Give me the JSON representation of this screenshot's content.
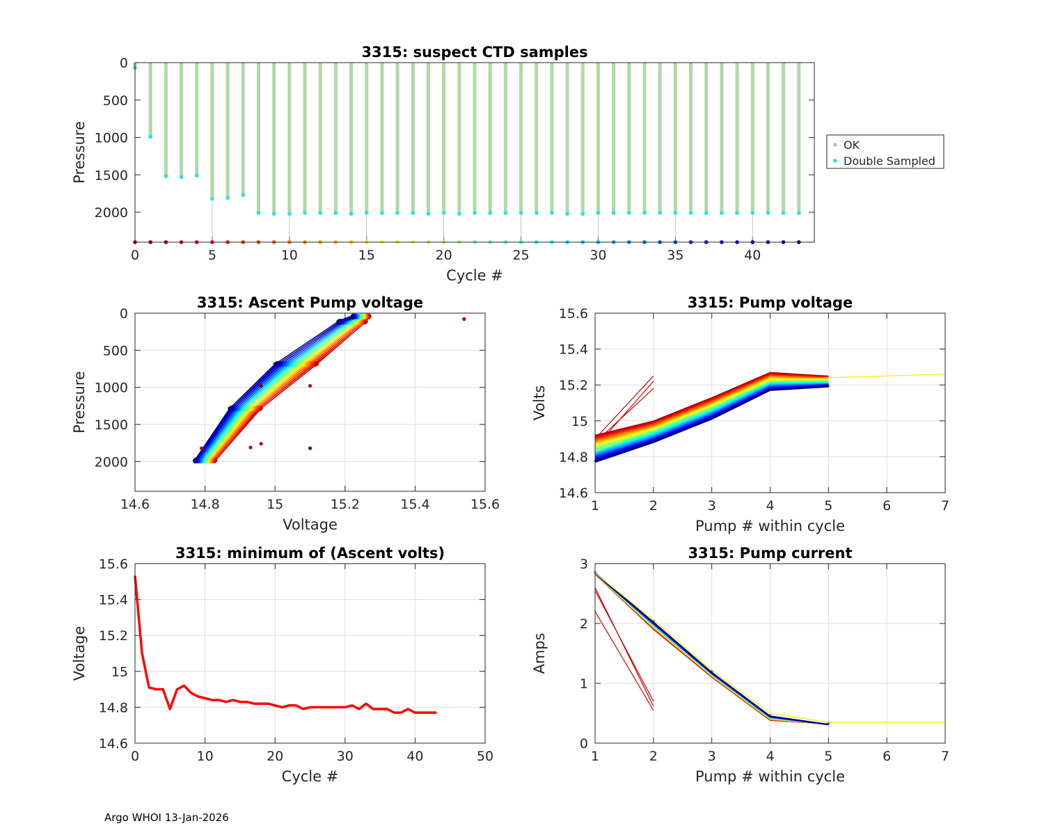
{
  "footer": "Argo WHOI 13-Jan-2026",
  "chart_data": [
    {
      "id": "ctd",
      "type": "scatter",
      "title": "3315: suspect CTD samples",
      "xlabel": "Cycle #",
      "ylabel": "Pressure",
      "xlim": [
        0,
        44
      ],
      "ylim": [
        0,
        2400
      ],
      "y_reversed": true,
      "xticks": [
        0,
        5,
        10,
        15,
        20,
        25,
        30,
        35,
        40
      ],
      "yticks": [
        0,
        500,
        1000,
        1500,
        2000
      ],
      "legend": [
        "OK",
        "Double Sampled"
      ],
      "colors": {
        "ok": "#b2d8a8",
        "double": "#22e4ec",
        "legend_ok": "#bdbdbd"
      },
      "cycles": [
        0,
        1,
        2,
        3,
        4,
        5,
        6,
        7,
        8,
        9,
        10,
        11,
        12,
        13,
        14,
        15,
        16,
        17,
        18,
        19,
        20,
        21,
        22,
        23,
        24,
        25,
        26,
        27,
        28,
        29,
        30,
        31,
        32,
        33,
        34,
        35,
        36,
        37,
        38,
        39,
        40,
        41,
        42,
        43
      ],
      "max_pressure": [
        70,
        990,
        1520,
        1530,
        1510,
        1820,
        1810,
        1770,
        2010,
        2020,
        2020,
        2010,
        2010,
        2010,
        2020,
        2010,
        2010,
        2010,
        2010,
        2020,
        2010,
        2020,
        2010,
        2010,
        2010,
        2010,
        2010,
        2010,
        2020,
        2020,
        2010,
        2010,
        2010,
        2010,
        2010,
        2010,
        2010,
        2010,
        2010,
        2010,
        2010,
        2010,
        2010,
        2010
      ]
    },
    {
      "id": "ascent",
      "type": "line",
      "title": "3315: Ascent Pump voltage",
      "xlabel": "Voltage",
      "ylabel": "Pressure",
      "xlim": [
        14.6,
        15.6
      ],
      "ylim": [
        0,
        2400
      ],
      "y_reversed": true,
      "xticks": [
        "14.6",
        "14.8",
        "15",
        "15.2",
        "15.4",
        "15.6"
      ],
      "yticks": [
        0,
        500,
        1000,
        1500,
        2000
      ],
      "pressures": [
        2000,
        1300,
        700,
        130,
        60
      ],
      "series_first": [
        14.96,
        15.1,
        15.54
      ],
      "series_early": [
        14.83,
        14.96,
        15.12,
        15.26,
        15.27
      ],
      "series_late": [
        14.77,
        14.87,
        15.0,
        15.18,
        15.22
      ],
      "outliers": [
        [
          14.79,
          1820
        ],
        [
          15.1,
          980
        ],
        [
          15.54,
          80
        ],
        [
          14.93,
          1810
        ],
        [
          14.96,
          1760
        ]
      ]
    },
    {
      "id": "pumpv",
      "type": "line",
      "title": "3315: Pump voltage",
      "xlabel": "Pump # within cycle",
      "ylabel": "Volts",
      "xlim": [
        1,
        7
      ],
      "ylim": [
        14.6,
        15.6
      ],
      "xticks": [
        1,
        2,
        3,
        4,
        5,
        6,
        7
      ],
      "yticks": [
        "14.6",
        "14.8",
        "15",
        "15.2",
        "15.4",
        "15.6"
      ],
      "series_early": [
        14.92,
        15.0,
        15.13,
        15.27,
        15.25
      ],
      "series_late": [
        14.77,
        14.88,
        15.01,
        15.17,
        15.19
      ],
      "short_series": [
        [
          14.9,
          15.25
        ],
        [
          14.88,
          15.18
        ],
        [
          14.85,
          15.22
        ]
      ],
      "long_series": [
        14.83,
        14.96,
        15.09,
        15.22,
        15.24,
        15.25,
        15.26
      ]
    },
    {
      "id": "minv",
      "type": "line",
      "title": "3315: minimum of (Ascent volts)",
      "xlabel": "Cycle #",
      "ylabel": "Voltage",
      "xlim": [
        0,
        50
      ],
      "ylim": [
        14.6,
        15.6
      ],
      "xticks": [
        0,
        10,
        20,
        30,
        40,
        50
      ],
      "yticks": [
        "14.6",
        "14.8",
        "15",
        "15.2",
        "15.4",
        "15.6"
      ],
      "color": "#ff0000",
      "x": [
        0,
        1,
        2,
        3,
        4,
        5,
        6,
        7,
        8,
        9,
        10,
        11,
        12,
        13,
        14,
        15,
        16,
        17,
        18,
        19,
        20,
        21,
        22,
        23,
        24,
        25,
        26,
        27,
        28,
        29,
        30,
        31,
        32,
        33,
        34,
        35,
        36,
        37,
        38,
        39,
        40,
        41,
        42,
        43
      ],
      "values": [
        15.53,
        15.1,
        14.91,
        14.9,
        14.9,
        14.79,
        14.9,
        14.92,
        14.88,
        14.86,
        14.85,
        14.84,
        14.84,
        14.83,
        14.84,
        14.83,
        14.83,
        14.82,
        14.82,
        14.82,
        14.81,
        14.8,
        14.81,
        14.81,
        14.79,
        14.8,
        14.8,
        14.8,
        14.8,
        14.8,
        14.8,
        14.81,
        14.79,
        14.82,
        14.79,
        14.79,
        14.79,
        14.77,
        14.77,
        14.79,
        14.77,
        14.77,
        14.77,
        14.77
      ]
    },
    {
      "id": "pumpc",
      "type": "line",
      "title": "3315: Pump current",
      "xlabel": "Pump # within cycle",
      "ylabel": "Amps",
      "xlim": [
        1,
        7
      ],
      "ylim": [
        0,
        3
      ],
      "xticks": [
        1,
        2,
        3,
        4,
        5,
        6,
        7
      ],
      "yticks": [
        0,
        1,
        2,
        3
      ],
      "series_early": [
        2.82,
        1.9,
        1.1,
        0.38,
        0.32
      ],
      "series_late": [
        2.84,
        2.02,
        1.18,
        0.45,
        0.31
      ],
      "short_series": [
        [
          2.55,
          0.7
        ],
        [
          2.2,
          0.55
        ],
        [
          2.6,
          0.62
        ]
      ],
      "long_series": [
        2.84,
        2.06,
        1.22,
        0.5,
        0.35,
        0.35,
        0.35
      ]
    }
  ]
}
